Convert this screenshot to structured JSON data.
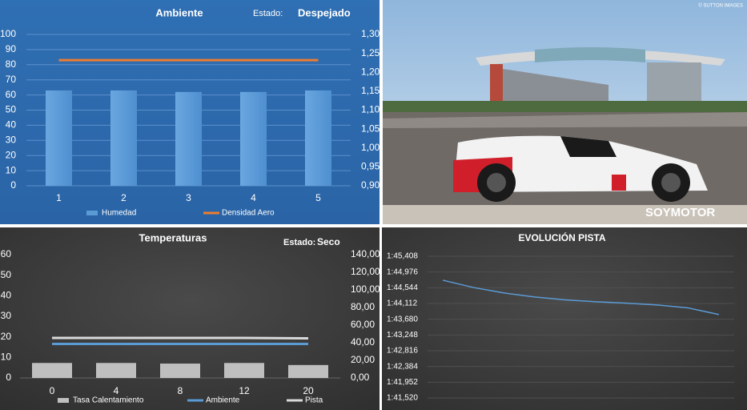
{
  "chart_data": [
    {
      "type": "combo",
      "title": "Ambiente",
      "annotations": [
        "Estado:",
        "Despejado"
      ],
      "categories": [
        "1",
        "2",
        "3",
        "4",
        "5"
      ],
      "series": [
        {
          "name": "Humedad",
          "type": "bar",
          "color": "#5b9bd5",
          "values": [
            63,
            63,
            62,
            62,
            63
          ]
        },
        {
          "name": "Densidad Aero",
          "type": "line",
          "axis": "y2",
          "color": "#ed7d31",
          "values": [
            1.232,
            1.232,
            1.232,
            1.232,
            1.232
          ]
        }
      ],
      "ylim": [
        0,
        100
      ],
      "yticks": [
        0,
        10,
        20,
        30,
        40,
        50,
        60,
        70,
        80,
        90,
        100
      ],
      "y2lim": [
        0.9,
        1.3
      ],
      "y2ticks": [
        {
          "value": 0.9,
          "label": "0,90"
        },
        {
          "value": 0.95,
          "label": "0,95"
        },
        {
          "value": 1.0,
          "label": "1,00"
        },
        {
          "value": 1.05,
          "label": "1,05"
        },
        {
          "value": 1.1,
          "label": "1,10"
        },
        {
          "value": 1.15,
          "label": "1,15"
        },
        {
          "value": 1.2,
          "label": "1,20"
        },
        {
          "value": 1.25,
          "label": "1,25"
        },
        {
          "value": 1.3,
          "label": "1,30"
        }
      ],
      "grid": true,
      "legend": "bottom"
    },
    {
      "type": "combo",
      "title": "Temperaturas",
      "annotations": [
        "Estado:",
        "Seco"
      ],
      "categories": [
        "0",
        "4",
        "8",
        "12",
        "20"
      ],
      "series": [
        {
          "name": "Tasa Calentamiento",
          "type": "bar",
          "color": "#bfbfbf",
          "values": [
            7.3,
            7.3,
            7,
            7.3,
            6.3
          ]
        },
        {
          "name": "Ambiente",
          "type": "line",
          "axis": "y2",
          "color": "#5b9bd5",
          "values": [
            38.6,
            38.6,
            38.6,
            38.6,
            38.6
          ]
        },
        {
          "name": "Pista",
          "type": "line",
          "axis": "y2",
          "color": "#d9d9d9",
          "values": [
            45.4,
            45.4,
            45.4,
            45.4,
            45
          ]
        }
      ],
      "ylim": [
        0,
        60
      ],
      "yticks": [
        0,
        10,
        20,
        30,
        40,
        50,
        60
      ],
      "y2lim": [
        0,
        140
      ],
      "y2ticks": [
        {
          "value": 0,
          "label": "0,00"
        },
        {
          "value": 20,
          "label": "20,00"
        },
        {
          "value": 40,
          "label": "40,00"
        },
        {
          "value": 60,
          "label": "60,00"
        },
        {
          "value": 80,
          "label": "80,00"
        },
        {
          "value": 100,
          "label": "100,00"
        },
        {
          "value": 120,
          "label": "120,00"
        },
        {
          "value": 140,
          "label": "140,00"
        }
      ],
      "grid": false,
      "legend": "bottom"
    },
    {
      "type": "line",
      "title": "EVOLUCIÓN PISTA",
      "categories": [
        null,
        null,
        null,
        null,
        null,
        null,
        null,
        null,
        null,
        null
      ],
      "series": [
        {
          "name": "Pista",
          "type": "line",
          "color": "#5b9bd5",
          "values": [
            104.75,
            104.55,
            104.4,
            104.29,
            104.21,
            104.16,
            104.12,
            104.07,
            103.99,
            103.81
          ]
        }
      ],
      "ylim": [
        101.52,
        105.408
      ],
      "yticks": [
        {
          "value": 101.52,
          "label": "1:41,520"
        },
        {
          "value": 101.952,
          "label": "1:41,952"
        },
        {
          "value": 102.384,
          "label": "1:42,384"
        },
        {
          "value": 102.816,
          "label": "1:42,816"
        },
        {
          "value": 103.248,
          "label": "1:43,248"
        },
        {
          "value": 103.68,
          "label": "1:43,680"
        },
        {
          "value": 104.112,
          "label": "1:44,112"
        },
        {
          "value": 104.544,
          "label": "1:44,544"
        },
        {
          "value": 104.976,
          "label": "1:44,976"
        },
        {
          "value": 105.408,
          "label": "1:45,408"
        }
      ],
      "grid": true
    }
  ],
  "photo": {
    "credit": "© SUTTON IMAGES",
    "watermark": "SOYMOTOR"
  }
}
